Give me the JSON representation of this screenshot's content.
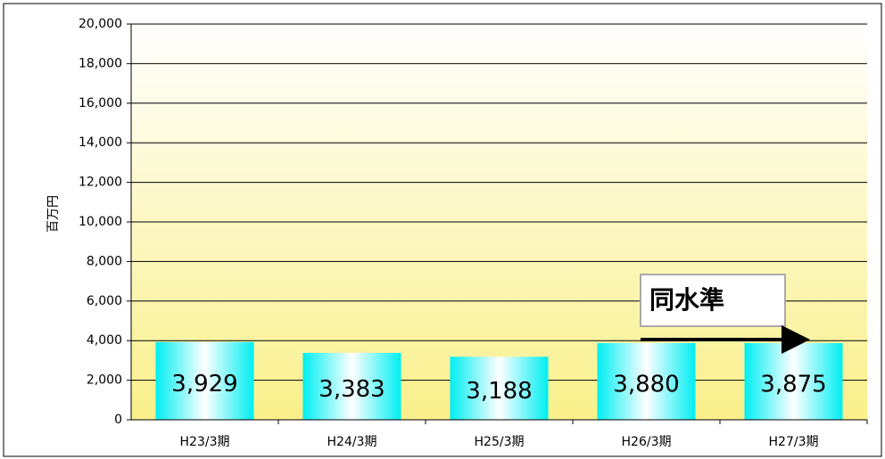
{
  "chart_data": {
    "type": "bar",
    "ylabel": "百万円",
    "categories": [
      "H23/3期",
      "H24/3期",
      "H25/3期",
      "H26/3期",
      "H27/3期"
    ],
    "values": [
      3929,
      3383,
      3188,
      3880,
      3875
    ],
    "value_labels": [
      "3,929",
      "3,383",
      "3,188",
      "3,880",
      "3,875"
    ],
    "color": "#00e5ee",
    "ylim": [
      0,
      20000
    ],
    "yticks": [
      0,
      {
        "value": 2000,
        "label": "2,000"
      },
      {
        "value": 4000,
        "label": "4,000"
      },
      {
        "value": 6000,
        "label": "6,000"
      },
      {
        "value": 8000,
        "label": "8,000"
      },
      {
        "value": 10000,
        "label": "10,000"
      },
      {
        "value": 12000,
        "label": "12,000"
      },
      {
        "value": 14000,
        "label": "14,000"
      },
      {
        "value": 16000,
        "label": "16,000"
      },
      {
        "value": 18000,
        "label": "18,000"
      },
      {
        "value": 20000,
        "label": "20,000"
      }
    ],
    "grid": true,
    "annotation": "同水準"
  }
}
